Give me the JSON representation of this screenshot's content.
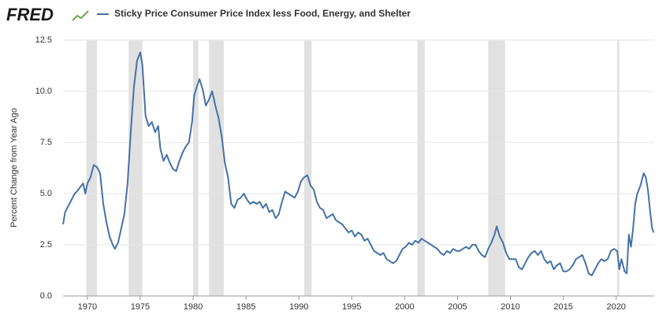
{
  "logo": "FRED",
  "chart_data": {
    "type": "line",
    "ylabel": "Percent Change from Year Ago",
    "xlim": [
      1967.7,
      2023.6
    ],
    "ylim": [
      0,
      12.5
    ],
    "xticks": [
      1970,
      1975,
      1980,
      1985,
      1990,
      1995,
      2000,
      2005,
      2010,
      2015,
      2020
    ],
    "yticks": [
      {
        "value": 0,
        "label": "0.0"
      },
      {
        "value": 2.5,
        "label": "2.5"
      },
      {
        "value": 5,
        "label": "5.0"
      },
      {
        "value": 7.5,
        "label": "7.5"
      },
      {
        "value": 10,
        "label": "10.0"
      },
      {
        "value": 12.5,
        "label": "12.5"
      }
    ],
    "grid": true,
    "shaded_periods": [
      [
        1969.9,
        1970.9
      ],
      [
        1973.9,
        1975.2
      ],
      [
        1980.0,
        1980.5
      ],
      [
        1981.5,
        1982.9
      ],
      [
        1990.5,
        1991.2
      ],
      [
        2001.2,
        2001.9
      ],
      [
        2007.9,
        2009.5
      ],
      [
        2020.1,
        2020.3
      ]
    ],
    "shade_color": "#e1e1e1",
    "x": [
      1967.7,
      1967.9,
      1968.2,
      1968.5,
      1968.8,
      1969.0,
      1969.3,
      1969.6,
      1969.8,
      1970.0,
      1970.3,
      1970.6,
      1970.9,
      1971.2,
      1971.5,
      1971.8,
      1972.1,
      1972.4,
      1972.6,
      1972.9,
      1973.2,
      1973.5,
      1973.8,
      1974.1,
      1974.4,
      1974.7,
      1975.0,
      1975.2,
      1975.5,
      1975.8,
      1976.1,
      1976.4,
      1976.7,
      1976.9,
      1977.2,
      1977.5,
      1977.8,
      1978.1,
      1978.4,
      1978.7,
      1979.0,
      1979.3,
      1979.6,
      1979.9,
      1980.1,
      1980.4,
      1980.6,
      1980.9,
      1981.2,
      1981.5,
      1981.8,
      1982.1,
      1982.4,
      1982.7,
      1983.0,
      1983.3,
      1983.6,
      1983.9,
      1984.2,
      1984.5,
      1984.8,
      1985.1,
      1985.4,
      1985.7,
      1986.0,
      1986.3,
      1986.6,
      1986.9,
      1987.2,
      1987.5,
      1987.8,
      1988.1,
      1988.4,
      1988.7,
      1989.0,
      1989.3,
      1989.6,
      1989.9,
      1990.2,
      1990.5,
      1990.8,
      1991.1,
      1991.4,
      1991.7,
      1992.0,
      1992.3,
      1992.6,
      1992.9,
      1993.2,
      1993.5,
      1993.8,
      1994.1,
      1994.4,
      1994.7,
      1995.0,
      1995.3,
      1995.6,
      1995.9,
      1996.2,
      1996.5,
      1996.8,
      1997.1,
      1997.4,
      1997.7,
      1998.0,
      1998.3,
      1998.6,
      1998.9,
      1999.2,
      1999.5,
      1999.8,
      2000.1,
      2000.4,
      2000.7,
      2001.0,
      2001.3,
      2001.6,
      2001.9,
      2002.2,
      2002.5,
      2002.8,
      2003.1,
      2003.4,
      2003.7,
      2004.0,
      2004.3,
      2004.6,
      2004.9,
      2005.2,
      2005.5,
      2005.8,
      2006.1,
      2006.4,
      2006.7,
      2007.0,
      2007.3,
      2007.6,
      2007.9,
      2008.2,
      2008.5,
      2008.7,
      2009.0,
      2009.3,
      2009.6,
      2009.9,
      2010.2,
      2010.5,
      2010.8,
      2011.1,
      2011.4,
      2011.7,
      2012.0,
      2012.3,
      2012.6,
      2012.9,
      2013.2,
      2013.5,
      2013.8,
      2014.1,
      2014.4,
      2014.7,
      2015.0,
      2015.3,
      2015.6,
      2015.9,
      2016.2,
      2016.5,
      2016.8,
      2017.1,
      2017.4,
      2017.7,
      2018.0,
      2018.3,
      2018.6,
      2018.9,
      2019.2,
      2019.5,
      2019.8,
      2020.1,
      2020.3,
      2020.5,
      2020.8,
      2021.0,
      2021.2,
      2021.4,
      2021.6,
      2021.8,
      2022.0,
      2022.3,
      2022.6,
      2022.8,
      2023.0,
      2023.2,
      2023.4,
      2023.55
    ],
    "series": [
      {
        "name": "Sticky Price Consumer Price Index less Food, Energy, and Shelter",
        "color": "#4572a7",
        "values": [
          3.5,
          4.1,
          4.4,
          4.7,
          5.0,
          5.1,
          5.3,
          5.5,
          5.0,
          5.5,
          5.8,
          6.4,
          6.3,
          6.0,
          4.5,
          3.6,
          2.9,
          2.5,
          2.3,
          2.6,
          3.3,
          4.0,
          5.5,
          8.0,
          10.2,
          11.5,
          11.9,
          11.3,
          8.8,
          8.3,
          8.5,
          8.0,
          8.3,
          7.2,
          6.6,
          6.9,
          6.5,
          6.2,
          6.1,
          6.6,
          7.0,
          7.3,
          7.5,
          8.5,
          9.8,
          10.3,
          10.6,
          10.1,
          9.3,
          9.6,
          10.0,
          9.3,
          8.7,
          7.8,
          6.5,
          5.8,
          4.5,
          4.3,
          4.7,
          4.8,
          5.0,
          4.7,
          4.5,
          4.6,
          4.5,
          4.6,
          4.3,
          4.5,
          4.1,
          4.2,
          3.8,
          4.0,
          4.6,
          5.1,
          5.0,
          4.9,
          4.8,
          5.1,
          5.6,
          5.8,
          5.9,
          5.4,
          5.2,
          4.6,
          4.3,
          4.2,
          3.8,
          3.9,
          4.0,
          3.7,
          3.6,
          3.5,
          3.3,
          3.1,
          3.2,
          2.9,
          3.1,
          3.0,
          2.7,
          2.8,
          2.5,
          2.2,
          2.1,
          2.0,
          2.1,
          1.8,
          1.7,
          1.6,
          1.7,
          2.0,
          2.3,
          2.4,
          2.6,
          2.5,
          2.7,
          2.6,
          2.8,
          2.7,
          2.6,
          2.5,
          2.4,
          2.3,
          2.1,
          2.0,
          2.2,
          2.1,
          2.3,
          2.2,
          2.2,
          2.3,
          2.4,
          2.3,
          2.5,
          2.5,
          2.2,
          2.0,
          1.9,
          2.3,
          2.6,
          3.0,
          3.4,
          2.9,
          2.6,
          2.1,
          1.8,
          1.8,
          1.8,
          1.4,
          1.3,
          1.6,
          1.9,
          2.1,
          2.2,
          2.0,
          2.2,
          1.8,
          1.6,
          1.7,
          1.3,
          1.5,
          1.6,
          1.2,
          1.2,
          1.3,
          1.5,
          1.8,
          1.9,
          2.0,
          1.6,
          1.1,
          1.0,
          1.3,
          1.6,
          1.8,
          1.7,
          1.8,
          2.2,
          2.3,
          2.2,
          1.3,
          1.8,
          1.2,
          1.1,
          3.0,
          2.4,
          3.3,
          4.5,
          5.0,
          5.4,
          6.0,
          5.8,
          5.2,
          4.2,
          3.3,
          3.1
        ]
      }
    ]
  }
}
